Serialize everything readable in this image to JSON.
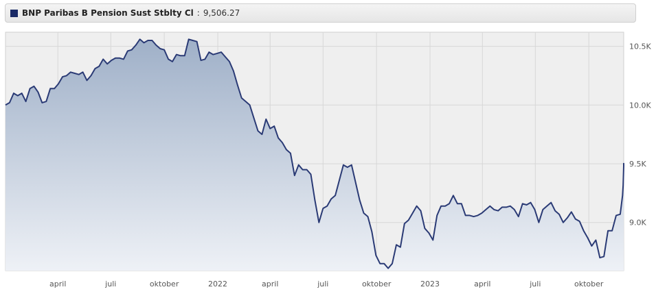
{
  "legend": {
    "series_name": "BNP Paribas B Pension Sust Stblty Cl",
    "separator": ":",
    "last_value": "9,506.27",
    "color": "#1a2a66"
  },
  "colors": {
    "line": "#2a3a75",
    "area_top": "#9fb0c8",
    "area_bottom": "#eef1f6",
    "plot_bg": "#efefef",
    "grid": "#d7d7d7"
  },
  "chart_data": {
    "type": "area",
    "title": "BNP Paribas B Pension Sust Stblty Cl",
    "xlabel": "",
    "ylabel": "",
    "grid": true,
    "y_axis_position": "right",
    "ylim": [
      8590,
      10620
    ],
    "x_range": [
      "2021-01-01",
      "2023-11-30"
    ],
    "x_ticks": [
      {
        "date": "2021-04-01",
        "label": "april"
      },
      {
        "date": "2021-07-01",
        "label": "juli"
      },
      {
        "date": "2021-10-01",
        "label": "oktober"
      },
      {
        "date": "2022-01-01",
        "label": "2022"
      },
      {
        "date": "2022-04-01",
        "label": "april"
      },
      {
        "date": "2022-07-01",
        "label": "juli"
      },
      {
        "date": "2022-10-01",
        "label": "oktober"
      },
      {
        "date": "2023-01-01",
        "label": "2023"
      },
      {
        "date": "2023-04-01",
        "label": "april"
      },
      {
        "date": "2023-07-01",
        "label": "juli"
      },
      {
        "date": "2023-10-01",
        "label": "oktober"
      }
    ],
    "y_ticks": [
      {
        "value": 9000,
        "label": "9.0K"
      },
      {
        "value": 9500,
        "label": "9.5K"
      },
      {
        "value": 10000,
        "label": "10.0K"
      },
      {
        "value": 10500,
        "label": "10.5K"
      }
    ],
    "series": [
      {
        "name": "BNP Paribas B Pension Sust Stblty Cl",
        "points": [
          [
            "2021-01-01",
            10000
          ],
          [
            "2021-01-08",
            10020
          ],
          [
            "2021-01-15",
            10100
          ],
          [
            "2021-01-22",
            10080
          ],
          [
            "2021-01-29",
            10100
          ],
          [
            "2021-02-05",
            10030
          ],
          [
            "2021-02-12",
            10140
          ],
          [
            "2021-02-19",
            10160
          ],
          [
            "2021-02-26",
            10110
          ],
          [
            "2021-03-05",
            10020
          ],
          [
            "2021-03-12",
            10030
          ],
          [
            "2021-03-19",
            10140
          ],
          [
            "2021-03-26",
            10140
          ],
          [
            "2021-04-02",
            10180
          ],
          [
            "2021-04-09",
            10240
          ],
          [
            "2021-04-16",
            10250
          ],
          [
            "2021-04-23",
            10280
          ],
          [
            "2021-04-30",
            10270
          ],
          [
            "2021-05-07",
            10260
          ],
          [
            "2021-05-14",
            10280
          ],
          [
            "2021-05-21",
            10210
          ],
          [
            "2021-05-28",
            10250
          ],
          [
            "2021-06-04",
            10310
          ],
          [
            "2021-06-11",
            10330
          ],
          [
            "2021-06-18",
            10390
          ],
          [
            "2021-06-25",
            10350
          ],
          [
            "2021-07-02",
            10380
          ],
          [
            "2021-07-09",
            10400
          ],
          [
            "2021-07-16",
            10400
          ],
          [
            "2021-07-23",
            10390
          ],
          [
            "2021-07-30",
            10460
          ],
          [
            "2021-08-06",
            10470
          ],
          [
            "2021-08-13",
            10510
          ],
          [
            "2021-08-20",
            10560
          ],
          [
            "2021-08-27",
            10530
          ],
          [
            "2021-09-03",
            10550
          ],
          [
            "2021-09-10",
            10550
          ],
          [
            "2021-09-17",
            10510
          ],
          [
            "2021-09-24",
            10480
          ],
          [
            "2021-10-01",
            10470
          ],
          [
            "2021-10-08",
            10390
          ],
          [
            "2021-10-15",
            10370
          ],
          [
            "2021-10-22",
            10430
          ],
          [
            "2021-10-29",
            10420
          ],
          [
            "2021-11-05",
            10420
          ],
          [
            "2021-11-12",
            10560
          ],
          [
            "2021-11-19",
            10550
          ],
          [
            "2021-11-26",
            10540
          ],
          [
            "2021-12-03",
            10380
          ],
          [
            "2021-12-10",
            10390
          ],
          [
            "2021-12-17",
            10450
          ],
          [
            "2021-12-24",
            10430
          ],
          [
            "2021-12-31",
            10440
          ],
          [
            "2022-01-07",
            10450
          ],
          [
            "2022-01-14",
            10410
          ],
          [
            "2022-01-21",
            10370
          ],
          [
            "2022-01-28",
            10290
          ],
          [
            "2022-02-04",
            10170
          ],
          [
            "2022-02-11",
            10060
          ],
          [
            "2022-02-18",
            10030
          ],
          [
            "2022-02-25",
            10000
          ],
          [
            "2022-03-04",
            9890
          ],
          [
            "2022-03-11",
            9780
          ],
          [
            "2022-03-18",
            9750
          ],
          [
            "2022-03-25",
            9880
          ],
          [
            "2022-04-01",
            9800
          ],
          [
            "2022-04-08",
            9820
          ],
          [
            "2022-04-15",
            9720
          ],
          [
            "2022-04-22",
            9680
          ],
          [
            "2022-04-29",
            9620
          ],
          [
            "2022-05-06",
            9590
          ],
          [
            "2022-05-13",
            9400
          ],
          [
            "2022-05-20",
            9490
          ],
          [
            "2022-05-27",
            9450
          ],
          [
            "2022-06-03",
            9450
          ],
          [
            "2022-06-10",
            9410
          ],
          [
            "2022-06-17",
            9190
          ],
          [
            "2022-06-24",
            9000
          ],
          [
            "2022-07-01",
            9120
          ],
          [
            "2022-07-08",
            9140
          ],
          [
            "2022-07-15",
            9200
          ],
          [
            "2022-07-22",
            9230
          ],
          [
            "2022-07-29",
            9360
          ],
          [
            "2022-08-05",
            9490
          ],
          [
            "2022-08-12",
            9470
          ],
          [
            "2022-08-19",
            9490
          ],
          [
            "2022-08-26",
            9340
          ],
          [
            "2022-09-02",
            9190
          ],
          [
            "2022-09-09",
            9080
          ],
          [
            "2022-09-16",
            9050
          ],
          [
            "2022-09-23",
            8920
          ],
          [
            "2022-09-30",
            8720
          ],
          [
            "2022-10-07",
            8650
          ],
          [
            "2022-10-14",
            8650
          ],
          [
            "2022-10-21",
            8610
          ],
          [
            "2022-10-28",
            8650
          ],
          [
            "2022-11-04",
            8810
          ],
          [
            "2022-11-11",
            8790
          ],
          [
            "2022-11-18",
            8990
          ],
          [
            "2022-11-25",
            9020
          ],
          [
            "2022-12-02",
            9080
          ],
          [
            "2022-12-09",
            9140
          ],
          [
            "2022-12-16",
            9100
          ],
          [
            "2022-12-23",
            8950
          ],
          [
            "2022-12-30",
            8910
          ],
          [
            "2023-01-06",
            8850
          ],
          [
            "2023-01-13",
            9060
          ],
          [
            "2023-01-20",
            9140
          ],
          [
            "2023-01-27",
            9140
          ],
          [
            "2023-02-03",
            9160
          ],
          [
            "2023-02-10",
            9230
          ],
          [
            "2023-02-17",
            9160
          ],
          [
            "2023-02-24",
            9160
          ],
          [
            "2023-03-03",
            9060
          ],
          [
            "2023-03-10",
            9060
          ],
          [
            "2023-03-17",
            9050
          ],
          [
            "2023-03-24",
            9060
          ],
          [
            "2023-03-31",
            9080
          ],
          [
            "2023-04-07",
            9110
          ],
          [
            "2023-04-14",
            9140
          ],
          [
            "2023-04-21",
            9110
          ],
          [
            "2023-04-28",
            9100
          ],
          [
            "2023-05-05",
            9130
          ],
          [
            "2023-05-12",
            9130
          ],
          [
            "2023-05-19",
            9140
          ],
          [
            "2023-05-26",
            9110
          ],
          [
            "2023-06-02",
            9050
          ],
          [
            "2023-06-09",
            9160
          ],
          [
            "2023-06-16",
            9150
          ],
          [
            "2023-06-23",
            9170
          ],
          [
            "2023-06-30",
            9110
          ],
          [
            "2023-07-07",
            9000
          ],
          [
            "2023-07-14",
            9110
          ],
          [
            "2023-07-21",
            9140
          ],
          [
            "2023-07-28",
            9170
          ],
          [
            "2023-08-04",
            9100
          ],
          [
            "2023-08-11",
            9070
          ],
          [
            "2023-08-18",
            9000
          ],
          [
            "2023-08-25",
            9040
          ],
          [
            "2023-09-01",
            9090
          ],
          [
            "2023-09-08",
            9030
          ],
          [
            "2023-09-15",
            9010
          ],
          [
            "2023-09-22",
            8930
          ],
          [
            "2023-09-29",
            8870
          ],
          [
            "2023-10-06",
            8800
          ],
          [
            "2023-10-13",
            8850
          ],
          [
            "2023-10-20",
            8700
          ],
          [
            "2023-10-27",
            8710
          ],
          [
            "2023-11-03",
            8930
          ],
          [
            "2023-11-10",
            8930
          ],
          [
            "2023-11-17",
            9060
          ],
          [
            "2023-11-24",
            9070
          ],
          [
            "2023-11-28",
            9230
          ],
          [
            "2023-11-29",
            9320
          ],
          [
            "2023-11-30",
            9480
          ],
          [
            "2023-11-30",
            9506.27
          ]
        ]
      }
    ]
  }
}
